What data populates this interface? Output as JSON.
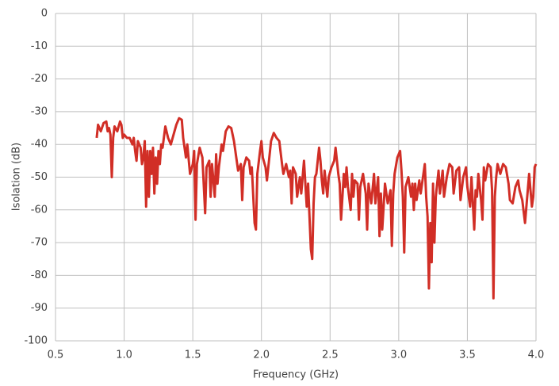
{
  "chart_data": {
    "type": "line",
    "xlabel": "Frequency (GHz)",
    "ylabel": "Isolation (dB)",
    "color": "#d12e26",
    "grid": true,
    "xlim": [
      0.5,
      4.0
    ],
    "xticks": [
      0.5,
      {
        "value": 1,
        "label": "1.0"
      },
      1.5,
      {
        "value": 2,
        "label": "2.0"
      },
      2.5,
      {
        "value": 3,
        "label": "3.0"
      },
      3.5,
      {
        "value": 4,
        "label": "4.0"
      }
    ],
    "ylim": [
      -100,
      0
    ],
    "yticks": [
      0,
      -10,
      -20,
      -30,
      -40,
      -50,
      -60,
      -70,
      -80,
      -90,
      -100
    ],
    "x": [
      0.8,
      0.81,
      0.83,
      0.85,
      0.87,
      0.88,
      0.89,
      0.9,
      0.91,
      0.92,
      0.93,
      0.95,
      0.97,
      0.98,
      0.99,
      1.0,
      1.02,
      1.04,
      1.06,
      1.07,
      1.08,
      1.09,
      1.1,
      1.12,
      1.13,
      1.14,
      1.15,
      1.16,
      1.17,
      1.18,
      1.19,
      1.2,
      1.21,
      1.22,
      1.23,
      1.24,
      1.25,
      1.26,
      1.27,
      1.28,
      1.3,
      1.32,
      1.34,
      1.36,
      1.38,
      1.4,
      1.42,
      1.43,
      1.45,
      1.46,
      1.48,
      1.5,
      1.51,
      1.52,
      1.53,
      1.55,
      1.57,
      1.59,
      1.6,
      1.62,
      1.63,
      1.64,
      1.66,
      1.67,
      1.68,
      1.69,
      1.71,
      1.72,
      1.74,
      1.76,
      1.78,
      1.8,
      1.82,
      1.83,
      1.85,
      1.86,
      1.87,
      1.89,
      1.91,
      1.92,
      1.93,
      1.95,
      1.96,
      1.97,
      1.99,
      2.0,
      2.01,
      2.03,
      2.04,
      2.05,
      2.07,
      2.09,
      2.11,
      2.13,
      2.15,
      2.16,
      2.18,
      2.2,
      2.21,
      2.22,
      2.23,
      2.25,
      2.26,
      2.28,
      2.29,
      2.31,
      2.33,
      2.34,
      2.35,
      2.36,
      2.37,
      2.38,
      2.39,
      2.4,
      2.42,
      2.43,
      2.44,
      2.45,
      2.46,
      2.48,
      2.49,
      2.51,
      2.53,
      2.54,
      2.56,
      2.57,
      2.58,
      2.6,
      2.61,
      2.62,
      2.63,
      2.65,
      2.66,
      2.67,
      2.68,
      2.7,
      2.71,
      2.72,
      2.74,
      2.76,
      2.77,
      2.78,
      2.8,
      2.82,
      2.83,
      2.85,
      2.86,
      2.87,
      2.88,
      2.9,
      2.92,
      2.94,
      2.95,
      2.96,
      2.97,
      2.99,
      3.01,
      3.02,
      3.03,
      3.04,
      3.05,
      3.07,
      3.09,
      3.1,
      3.11,
      3.12,
      3.13,
      3.15,
      3.16,
      3.18,
      3.19,
      3.2,
      3.21,
      3.22,
      3.23,
      3.24,
      3.25,
      3.26,
      3.27,
      3.29,
      3.3,
      3.32,
      3.33,
      3.35,
      3.37,
      3.39,
      3.4,
      3.42,
      3.44,
      3.45,
      3.47,
      3.49,
      3.5,
      3.52,
      3.53,
      3.55,
      3.56,
      3.57,
      3.58,
      3.6,
      3.61,
      3.62,
      3.63,
      3.65,
      3.67,
      3.68,
      3.69,
      3.7,
      3.71,
      3.72,
      3.74,
      3.76,
      3.78,
      3.8,
      3.81,
      3.83,
      3.85,
      3.87,
      3.88,
      3.9,
      3.92,
      3.93,
      3.95,
      3.97,
      3.98,
      3.99,
      4.0
    ],
    "values": [
      -38,
      -34,
      -36,
      -33.5,
      -33,
      -36,
      -35,
      -37,
      -50,
      -38,
      -34.5,
      -36,
      -33,
      -34,
      -38,
      -37,
      -38,
      -38,
      -40,
      -38,
      -42,
      -45,
      -39,
      -41,
      -46,
      -44,
      -39,
      -59,
      -42,
      -56,
      -42,
      -49,
      -41,
      -55,
      -44,
      -52,
      -42,
      -46,
      -40,
      -41,
      -34.5,
      -38,
      -40,
      -37,
      -34,
      -32,
      -32.5,
      -38,
      -44,
      -40,
      -49,
      -46,
      -42,
      -63,
      -46,
      -41,
      -44,
      -61,
      -47,
      -45,
      -56,
      -46,
      -56,
      -43,
      -52,
      -47,
      -40,
      -42,
      -36,
      -34.5,
      -35,
      -39,
      -45,
      -48,
      -46,
      -57,
      -47,
      -44,
      -45,
      -49,
      -47,
      -64,
      -66,
      -49,
      -42,
      -39,
      -44,
      -47,
      -51,
      -47,
      -39,
      -36.5,
      -38,
      -39,
      -46,
      -49,
      -46,
      -50,
      -48,
      -58,
      -47,
      -49,
      -56,
      -50,
      -55,
      -45,
      -59,
      -52,
      -62,
      -72,
      -75,
      -58,
      -50,
      -49,
      -41,
      -45,
      -51,
      -55,
      -48,
      -56,
      -50,
      -47,
      -45,
      -41,
      -49,
      -52,
      -63,
      -49,
      -53,
      -47,
      -53,
      -60,
      -49,
      -56,
      -51,
      -52,
      -63,
      -53,
      -49,
      -55,
      -66,
      -52,
      -58,
      -49,
      -58,
      -50,
      -68,
      -55,
      -66,
      -52,
      -58,
      -54,
      -71,
      -55,
      -49,
      -44,
      -42,
      -48,
      -56,
      -73,
      -53,
      -50,
      -56,
      -52,
      -60,
      -52,
      -57,
      -51,
      -55,
      -49,
      -46,
      -56,
      -62,
      -84,
      -64,
      -76,
      -52,
      -70,
      -56,
      -48,
      -55,
      -48,
      -56,
      -50,
      -46,
      -47,
      -55,
      -48,
      -47,
      -57,
      -50,
      -47,
      -53,
      -59,
      -50,
      -66,
      -54,
      -56,
      -49,
      -57,
      -63,
      -47,
      -51,
      -46,
      -47,
      -54,
      -87,
      -56,
      -50,
      -46,
      -49,
      -46,
      -47,
      -52,
      -57,
      -58,
      -53,
      -51,
      -54,
      -57,
      -64,
      -59,
      -49,
      -59,
      -56,
      -47,
      -46
    ]
  }
}
